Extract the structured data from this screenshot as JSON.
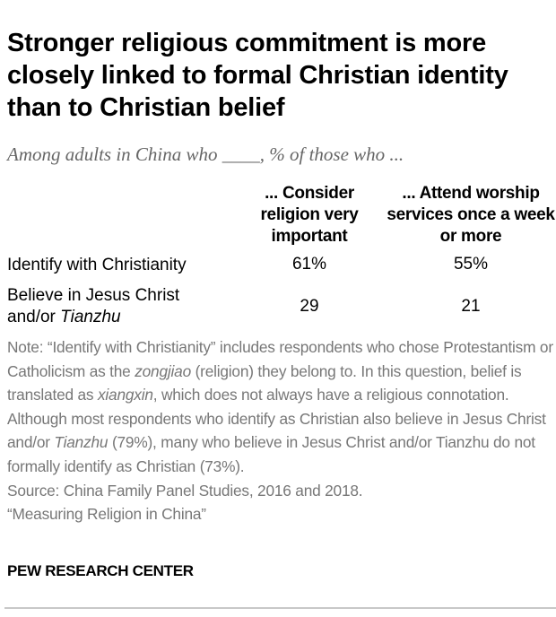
{
  "chart_data": {
    "type": "table",
    "title": "Stronger religious commitment is more closely linked to formal Christian identity than to Christian belief",
    "subtitle": "Among adults in China who ____, % of those who ...",
    "columns": [
      "... Consider religion very important",
      "... Attend worship services once a week or more"
    ],
    "rows": [
      {
        "label": "Identify with Christianity",
        "values": [
          "61%",
          "55%"
        ]
      },
      {
        "label_main": "Believe in Jesus Christ and/or ",
        "label_italic": "Tianzhu",
        "values": [
          "29",
          "21"
        ]
      }
    ]
  },
  "note": {
    "p1": "Note: “Identify with Christianity” includes respondents who chose Protestantism or Catholicism as the ",
    "i1": "zongjiao",
    "p2": " (religion) they belong to. In this question, belief is translated as ",
    "i2": "xiangxin",
    "p3": ", which does not always have a religious connotation. Although most respondents who identify as Christian also believe in Jesus Christ and/or ",
    "i3": "Tianzhu",
    "p4": " (79%), many who believe in Jesus Christ and/or Tianzhu do not formally identify as Christian (73%).",
    "source": "Source: China Family Panel Studies, 2016 and 2018.",
    "report": "“Measuring Religion in China”"
  },
  "footer": {
    "brand": "PEW RESEARCH CENTER"
  }
}
